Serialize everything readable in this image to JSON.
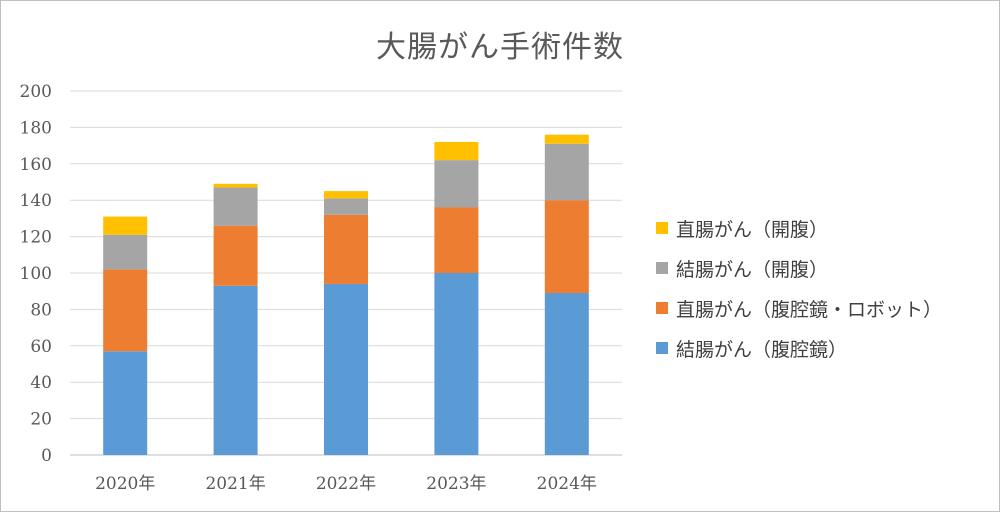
{
  "chart_data": {
    "type": "bar",
    "stacked": true,
    "title": "大腸がん手術件数",
    "xlabel": "",
    "ylabel": "",
    "categories": [
      "2020年",
      "2021年",
      "2022年",
      "2023年",
      "2024年"
    ],
    "ylim": [
      0,
      200
    ],
    "yticks": [
      0,
      20,
      40,
      60,
      80,
      100,
      120,
      140,
      160,
      180,
      200
    ],
    "grid": true,
    "legend_position": "right",
    "series": [
      {
        "name": "結腸がん（腹腔鏡）",
        "color": "#5b9bd5",
        "values": [
          57,
          93,
          94,
          100,
          89
        ]
      },
      {
        "name": "直腸がん（腹腔鏡・ロボット）",
        "color": "#ed7d31",
        "values": [
          45,
          33,
          38,
          36,
          51
        ]
      },
      {
        "name": "結腸がん（開腹）",
        "color": "#a5a5a5",
        "values": [
          19,
          21,
          9,
          26,
          31
        ]
      },
      {
        "name": "直腸がん（開腹）",
        "color": "#ffc000",
        "values": [
          10,
          2,
          4,
          10,
          5
        ]
      }
    ],
    "legend_order": [
      3,
      2,
      1,
      0
    ]
  }
}
